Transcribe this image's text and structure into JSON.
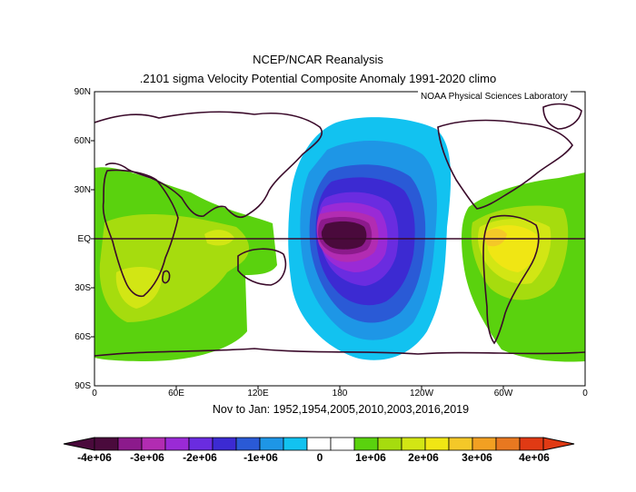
{
  "header": {
    "line1": "NCEP/NCAR Reanalysis",
    "line2": ".2101 sigma Velocity Potential  Composite Anomaly 1991-2020 climo"
  },
  "credit": "NOAA Physical Sciences Laboratory",
  "subtitle": "Nov to Jan: 1952,1954,2005,2010,2003,2016,2019",
  "lat_labels": [
    "90N",
    "60N",
    "30N",
    "EQ",
    "30S",
    "60S",
    "90S"
  ],
  "lon_labels": [
    "0",
    "60E",
    "120E",
    "180",
    "120W",
    "60W",
    "0"
  ],
  "colorbar": {
    "labels": [
      "-4e+06",
      "-3e+06",
      "-2e+06",
      "-1e+06",
      "0",
      "1e+06",
      "2e+06",
      "3e+06",
      "4e+06"
    ],
    "colors": [
      "#4a0a3c",
      "#8c1a8c",
      "#b22cb2",
      "#9a2ad6",
      "#6a2ce0",
      "#3c2ad2",
      "#2a5ad6",
      "#1e96e6",
      "#12c2f0",
      "#ffffff",
      "#ffffff",
      "#5ad20e",
      "#a6dc0e",
      "#d2e614",
      "#f0e614",
      "#f4c828",
      "#f2a022",
      "#e87820",
      "#e03a14"
    ]
  },
  "chart_data": {
    "type": "map",
    "variable": "Velocity Potential Composite Anomaly",
    "level": ".2101 sigma",
    "units_range": [
      -4000000,
      4000000
    ],
    "contour_interval": 500000,
    "features": [
      {
        "region": "Central Pacific near 180, EQ",
        "value": -4000000
      },
      {
        "region": "Pacific basin 60N-60S, 130E-110W",
        "value_range": [
          -3500000,
          -500000
        ]
      },
      {
        "region": "Tropical South America / Atlantic",
        "value": 2500000
      },
      {
        "region": "Southern Africa / Indian Ocean",
        "value": 1500000
      }
    ]
  }
}
